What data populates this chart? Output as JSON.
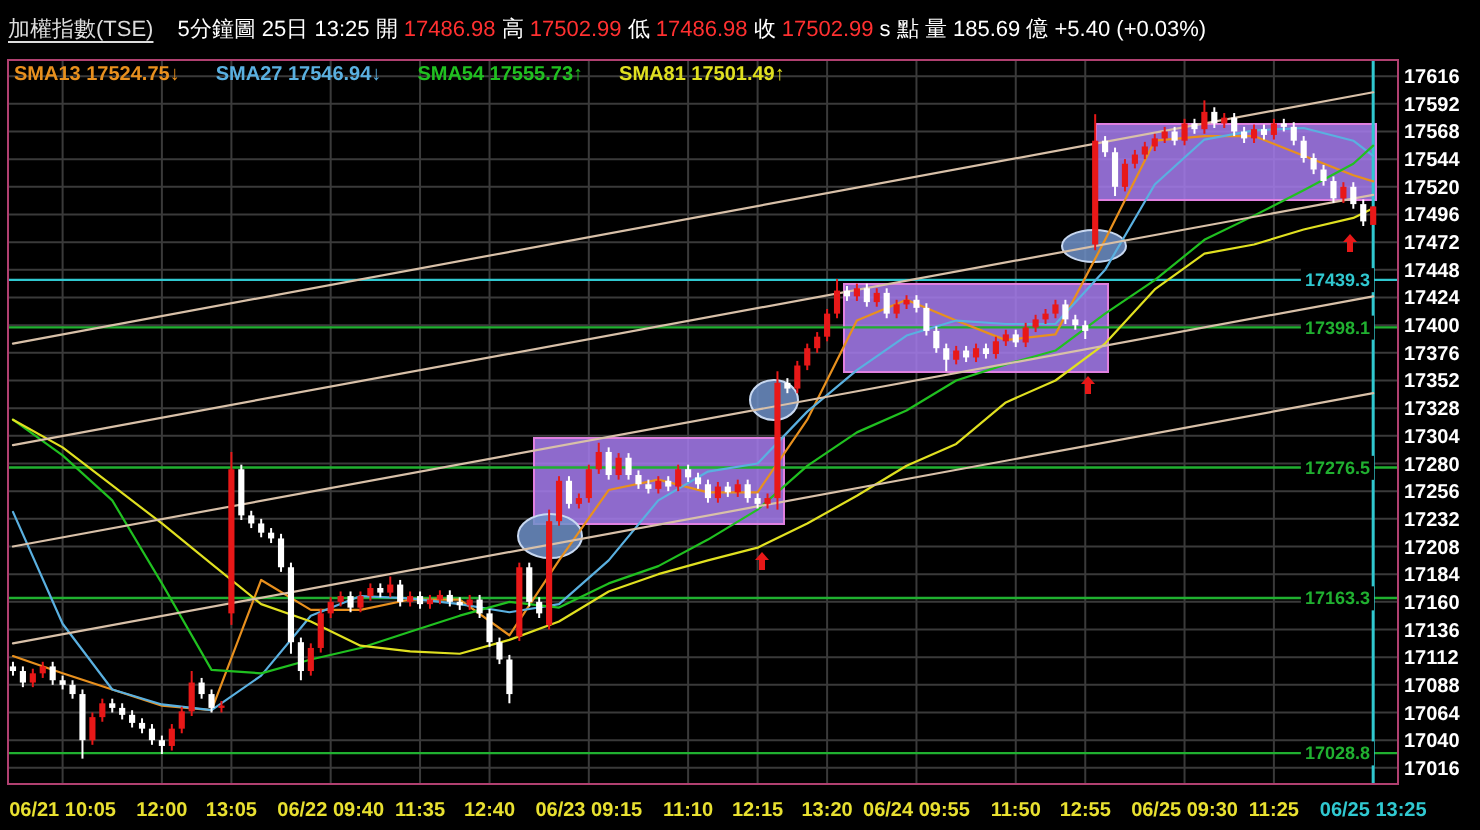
{
  "chart_data": {
    "type": "candlestick",
    "title": "加權指數(TSE)",
    "subtitle": "5分鐘圖 25日 13:25 開 17486.98 高 17502.99 低 17486.98 收 17502.99 s 點 量 185.69 億 +5.40 (+0.03%)",
    "categories": [
      null,
      null,
      null,
      null,
      null,
      "06/21 10:05",
      null,
      null,
      null,
      null,
      null,
      null,
      null,
      null,
      null,
      "12:00",
      null,
      null,
      null,
      null,
      null,
      null,
      "13:05",
      null,
      null,
      null,
      null,
      null,
      null,
      null,
      null,
      null,
      "06/22 09:40",
      null,
      null,
      null,
      null,
      null,
      null,
      null,
      null,
      "11:35",
      null,
      null,
      null,
      null,
      null,
      null,
      "12:40",
      null,
      null,
      null,
      null,
      null,
      null,
      null,
      null,
      null,
      "06/23 09:15",
      null,
      null,
      null,
      null,
      null,
      null,
      null,
      null,
      null,
      "11:10",
      null,
      null,
      null,
      null,
      null,
      null,
      "12:15",
      null,
      null,
      null,
      null,
      null,
      null,
      "13:20",
      null,
      null,
      null,
      null,
      null,
      null,
      null,
      null,
      "06/24 09:55",
      null,
      null,
      null,
      null,
      null,
      null,
      null,
      null,
      null,
      "11:50",
      null,
      null,
      null,
      null,
      null,
      null,
      "12:55",
      null,
      null,
      null,
      null,
      null,
      null,
      null,
      null,
      null,
      "06/25 09:30",
      null,
      null,
      null,
      null,
      null,
      null,
      null,
      null,
      "11:25",
      null,
      null,
      null,
      null,
      null,
      null,
      null,
      null,
      null,
      "06/25 13:25",
      null,
      null
    ],
    "ylim": [
      17002,
      17630
    ],
    "yticks": [
      17016,
      17040,
      17064,
      17088,
      17112,
      17136,
      17160,
      17184,
      17208,
      17232,
      17256,
      17280,
      17304,
      17328,
      17352,
      17376,
      17400,
      17424,
      17448,
      17472,
      17496,
      17520,
      17544,
      17568,
      17592,
      17616
    ],
    "grid": true,
    "legend": "top left",
    "colors": [
      "#ffffff",
      "#ffffff",
      "#e81818",
      "#e81818",
      "#ffffff",
      "#ffffff",
      "#ffffff",
      "#ffffff",
      "#e81818",
      "#e81818",
      "#ffffff",
      "#ffffff",
      "#ffffff",
      "#ffffff",
      "#ffffff",
      "#ffffff",
      "#e81818",
      "#e81818",
      "#e81818",
      "#ffffff",
      "#ffffff",
      "#e81818",
      "#e81818",
      "#ffffff",
      "#ffffff",
      "#ffffff",
      "#ffffff",
      "#ffffff",
      "#ffffff",
      "#ffffff",
      "#e81818",
      "#e81818",
      "#e81818",
      "#e81818",
      "#ffffff",
      "#e81818",
      "#e81818",
      "#ffffff",
      "#e81818",
      "#ffffff",
      "#e81818",
      "#ffffff",
      "#e81818",
      "#e81818",
      "#ffffff",
      "#ffffff",
      "#e81818",
      "#ffffff",
      "#ffffff",
      "#ffffff",
      "#ffffff",
      "#e81818",
      "#ffffff",
      "#ffffff",
      "#e81818",
      "#e81818",
      "#ffffff",
      "#e81818",
      "#e81818",
      "#e81818",
      "#ffffff",
      "#e81818",
      "#ffffff",
      "#ffffff",
      "#ffffff",
      "#e81818",
      "#ffffff",
      "#e81818",
      "#ffffff",
      "#ffffff",
      "#ffffff",
      "#e81818",
      "#ffffff",
      "#e81818",
      "#ffffff",
      "#ffffff",
      "#e81818",
      "#e81818",
      "#ffffff",
      "#e81818",
      "#e81818",
      "#e81818",
      "#e81818",
      "#e81818",
      "#ffffff",
      "#e81818",
      "#ffffff",
      "#e81818",
      "#ffffff",
      "#e81818",
      "#e81818",
      "#ffffff",
      "#ffffff",
      "#ffffff",
      "#ffffff",
      "#e81818",
      "#ffffff",
      "#e81818",
      "#ffffff",
      "#e81818",
      "#e81818",
      "#ffffff",
      "#e81818",
      "#e81818",
      "#e81818",
      "#e81818",
      "#ffffff",
      "#ffffff",
      "#ffffff",
      "#e81818",
      "#ffffff",
      "#ffffff",
      "#e81818",
      "#e81818",
      "#e81818",
      "#e81818",
      "#e81818",
      "#ffffff",
      "#e81818",
      "#ffffff",
      "#e81818",
      "#ffffff",
      "#e81818",
      "#ffffff",
      "#ffffff",
      "#e81818",
      "#ffffff",
      "#e81818",
      "#ffffff",
      "#ffffff",
      "#ffffff",
      "#ffffff",
      "#ffffff",
      "#ffffff",
      "#e81818",
      "#ffffff",
      "#ffffff",
      "#e81818",
      null,
      null
    ],
    "ref_lines": [
      {
        "axis": "y",
        "value": 17439.3,
        "label": "17439.3",
        "color": "#30c8d0"
      },
      {
        "axis": "y",
        "value": 17398.1,
        "label": "17398.1",
        "color": "#20b030"
      },
      {
        "axis": "y",
        "value": 17276.5,
        "label": "17276.5",
        "color": "#20b030"
      },
      {
        "axis": "y",
        "value": 17163.3,
        "label": "17163.3",
        "color": "#20b030"
      },
      {
        "axis": "y",
        "value": 17028.8,
        "label": "17028.8",
        "color": "#20b030"
      },
      {
        "axis": "x",
        "value": "06/25 13:25",
        "color": "#30c8d0"
      }
    ],
    "ohlc": [
      [
        17104,
        17108,
        17096,
        17100
      ],
      [
        17100,
        17104,
        17086,
        17090
      ],
      [
        17090,
        17102,
        17086,
        17098
      ],
      [
        17098,
        17108,
        17094,
        17104
      ],
      [
        17104,
        17108,
        17088,
        17092
      ],
      [
        17092,
        17096,
        17084,
        17088
      ],
      [
        17088,
        17092,
        17076,
        17080
      ],
      [
        17080,
        17084,
        17024,
        17040
      ],
      [
        17040,
        17064,
        17036,
        17060
      ],
      [
        17060,
        17076,
        17056,
        17072
      ],
      [
        17072,
        17076,
        17064,
        17068
      ],
      [
        17068,
        17072,
        17058,
        17062
      ],
      [
        17062,
        17066,
        17051,
        17055
      ],
      [
        17055,
        17059,
        17046,
        17050
      ],
      [
        17050,
        17054,
        17036,
        17040
      ],
      [
        17040,
        17044,
        17028,
        17035
      ],
      [
        17035,
        17054,
        17031,
        17050
      ],
      [
        17050,
        17069,
        17046,
        17065
      ],
      [
        17065,
        17100,
        17061,
        17090
      ],
      [
        17090,
        17094,
        17076,
        17080
      ],
      [
        17080,
        17084,
        17064,
        17068
      ],
      [
        17068,
        17074,
        17064,
        17070
      ],
      [
        17150,
        17290,
        17140,
        17275
      ],
      [
        17275,
        17279,
        17231,
        17235
      ],
      [
        17235,
        17239,
        17224,
        17228
      ],
      [
        17228,
        17232,
        17216,
        17220
      ],
      [
        17220,
        17224,
        17211,
        17215
      ],
      [
        17215,
        17219,
        17186,
        17190
      ],
      [
        17190,
        17194,
        17115,
        17125
      ],
      [
        17125,
        17129,
        17092,
        17100
      ],
      [
        17100,
        17124,
        17096,
        17120
      ],
      [
        17120,
        17154,
        17116,
        17150
      ],
      [
        17150,
        17164,
        17146,
        17160
      ],
      [
        17160,
        17169,
        17156,
        17165
      ],
      [
        17165,
        17169,
        17151,
        17155
      ],
      [
        17155,
        17169,
        17151,
        17165
      ],
      [
        17165,
        17176,
        17161,
        17172
      ],
      [
        17172,
        17176,
        17164,
        17168
      ],
      [
        17168,
        17182,
        17164,
        17175
      ],
      [
        17175,
        17179,
        17156,
        17160
      ],
      [
        17160,
        17169,
        17156,
        17165
      ],
      [
        17165,
        17169,
        17154,
        17158
      ],
      [
        17158,
        17166,
        17154,
        17162
      ],
      [
        17162,
        17170,
        17158,
        17166
      ],
      [
        17166,
        17170,
        17156,
        17160
      ],
      [
        17160,
        17164,
        17153,
        17157
      ],
      [
        17157,
        17166,
        17153,
        17162
      ],
      [
        17162,
        17166,
        17146,
        17150
      ],
      [
        17150,
        17154,
        17121,
        17125
      ],
      [
        17125,
        17129,
        17106,
        17110
      ],
      [
        17110,
        17114,
        17072,
        17080
      ],
      [
        17130,
        17194,
        17126,
        17190
      ],
      [
        17190,
        17194,
        17156,
        17160
      ],
      [
        17160,
        17164,
        17146,
        17150
      ],
      [
        17140,
        17240,
        17136,
        17230
      ],
      [
        17230,
        17269,
        17226,
        17265
      ],
      [
        17265,
        17269,
        17241,
        17245
      ],
      [
        17245,
        17254,
        17241,
        17250
      ],
      [
        17250,
        17279,
        17246,
        17275
      ],
      [
        17275,
        17298,
        17271,
        17290
      ],
      [
        17290,
        17294,
        17266,
        17270
      ],
      [
        17270,
        17289,
        17266,
        17285
      ],
      [
        17285,
        17289,
        17266,
        17270
      ],
      [
        17270,
        17274,
        17258,
        17262
      ],
      [
        17262,
        17266,
        17254,
        17258
      ],
      [
        17258,
        17269,
        17254,
        17265
      ],
      [
        17265,
        17269,
        17256,
        17260
      ],
      [
        17260,
        17279,
        17256,
        17275
      ],
      [
        17275,
        17279,
        17264,
        17268
      ],
      [
        17268,
        17272,
        17258,
        17262
      ],
      [
        17262,
        17266,
        17246,
        17250
      ],
      [
        17250,
        17264,
        17246,
        17260
      ],
      [
        17260,
        17264,
        17251,
        17255
      ],
      [
        17255,
        17266,
        17251,
        17262
      ],
      [
        17262,
        17266,
        17246,
        17250
      ],
      [
        17250,
        17254,
        17241,
        17245
      ],
      [
        17245,
        17254,
        17241,
        17250
      ],
      [
        17250,
        17360,
        17240,
        17350
      ],
      [
        17350,
        17354,
        17341,
        17345
      ],
      [
        17345,
        17369,
        17341,
        17365
      ],
      [
        17365,
        17384,
        17361,
        17380
      ],
      [
        17380,
        17394,
        17376,
        17390
      ],
      [
        17390,
        17414,
        17386,
        17410
      ],
      [
        17410,
        17440,
        17406,
        17430
      ],
      [
        17430,
        17434,
        17421,
        17425
      ],
      [
        17425,
        17436,
        17421,
        17432
      ],
      [
        17432,
        17436,
        17416,
        17420
      ],
      [
        17420,
        17432,
        17416,
        17428
      ],
      [
        17428,
        17432,
        17406,
        17410
      ],
      [
        17410,
        17422,
        17406,
        17418
      ],
      [
        17418,
        17426,
        17414,
        17422
      ],
      [
        17422,
        17426,
        17411,
        17415
      ],
      [
        17415,
        17419,
        17391,
        17395
      ],
      [
        17395,
        17399,
        17376,
        17380
      ],
      [
        17380,
        17384,
        17360,
        17370
      ],
      [
        17370,
        17382,
        17366,
        17378
      ],
      [
        17378,
        17382,
        17368,
        17372
      ],
      [
        17372,
        17384,
        17368,
        17380
      ],
      [
        17380,
        17384,
        17371,
        17375
      ],
      [
        17375,
        17390,
        17371,
        17386
      ],
      [
        17386,
        17396,
        17382,
        17392
      ],
      [
        17392,
        17396,
        17381,
        17385
      ],
      [
        17385,
        17402,
        17381,
        17398
      ],
      [
        17398,
        17409,
        17394,
        17405
      ],
      [
        17405,
        17414,
        17401,
        17410
      ],
      [
        17410,
        17422,
        17406,
        17418
      ],
      [
        17418,
        17422,
        17401,
        17405
      ],
      [
        17405,
        17409,
        17396,
        17400
      ],
      [
        17400,
        17404,
        17388,
        17395
      ],
      [
        17470,
        17583,
        17465,
        17560
      ],
      [
        17560,
        17564,
        17546,
        17550
      ],
      [
        17550,
        17554,
        17512,
        17520
      ],
      [
        17520,
        17544,
        17516,
        17540
      ],
      [
        17540,
        17552,
        17536,
        17548
      ],
      [
        17548,
        17559,
        17544,
        17555
      ],
      [
        17555,
        17566,
        17551,
        17562
      ],
      [
        17562,
        17572,
        17558,
        17568
      ],
      [
        17568,
        17572,
        17556,
        17560
      ],
      [
        17560,
        17579,
        17556,
        17575
      ],
      [
        17575,
        17579,
        17566,
        17570
      ],
      [
        17570,
        17595,
        17566,
        17585
      ],
      [
        17585,
        17589,
        17571,
        17575
      ],
      [
        17575,
        17584,
        17571,
        17580
      ],
      [
        17580,
        17584,
        17564,
        17568
      ],
      [
        17568,
        17572,
        17558,
        17562
      ],
      [
        17562,
        17574,
        17558,
        17570
      ],
      [
        17570,
        17574,
        17561,
        17565
      ],
      [
        17565,
        17579,
        17561,
        17575
      ],
      [
        17575,
        17579,
        17568,
        17572
      ],
      [
        17572,
        17576,
        17556,
        17560
      ],
      [
        17560,
        17564,
        17541,
        17545
      ],
      [
        17545,
        17549,
        17531,
        17535
      ],
      [
        17535,
        17539,
        17521,
        17525
      ],
      [
        17525,
        17529,
        17506,
        17510
      ],
      [
        17510,
        17524,
        17506,
        17520
      ],
      [
        17520,
        17524,
        17501,
        17505
      ],
      [
        17505,
        17509,
        17486,
        17490
      ],
      [
        17486.98,
        17502.99,
        17486.98,
        17502.99
      ],
      null,
      null
    ],
    "series": [
      {
        "type": "line",
        "name": "SMA13 17524.75↓",
        "color": "#e8901e",
        "values": [
          17113,
          null,
          null,
          null,
          null,
          17098,
          null,
          null,
          null,
          null,
          17084,
          null,
          null,
          null,
          null,
          17070,
          null,
          null,
          null,
          null,
          17066,
          null,
          null,
          null,
          null,
          17179,
          null,
          null,
          null,
          null,
          17153,
          null,
          null,
          null,
          null,
          17153,
          null,
          null,
          null,
          null,
          17162,
          null,
          null,
          null,
          null,
          17162,
          null,
          null,
          null,
          null,
          17131,
          null,
          null,
          null,
          null,
          17196,
          null,
          null,
          null,
          null,
          17257,
          null,
          null,
          null,
          null,
          17266,
          null,
          null,
          null,
          null,
          17255,
          null,
          null,
          null,
          null,
          17255,
          null,
          null,
          null,
          null,
          17318,
          null,
          null,
          null,
          null,
          17404,
          null,
          null,
          null,
          null,
          17422,
          null,
          null,
          null,
          null,
          17404,
          null,
          null,
          null,
          null,
          17387,
          null,
          null,
          null,
          null,
          17392,
          null,
          null,
          null,
          null,
          17474,
          null,
          null,
          null,
          null,
          17560,
          null,
          null,
          null,
          null,
          17564,
          null,
          null,
          null,
          null,
          17564,
          null,
          null,
          null,
          null,
          17547,
          null,
          null,
          null,
          null,
          17530,
          null,
          17524.75,
          null,
          null
        ]
      },
      {
        "type": "line",
        "name": "SMA27 17546.94↓",
        "color": "#5ab0e0",
        "values": [
          17238,
          null,
          null,
          null,
          null,
          17141,
          null,
          null,
          null,
          null,
          17084,
          null,
          null,
          null,
          null,
          17071,
          null,
          null,
          null,
          null,
          17066,
          null,
          null,
          null,
          null,
          17096,
          null,
          null,
          null,
          null,
          17148,
          null,
          null,
          null,
          null,
          17165,
          null,
          null,
          null,
          null,
          17163,
          null,
          null,
          null,
          null,
          17158,
          null,
          null,
          null,
          null,
          17151,
          null,
          null,
          null,
          null,
          17158,
          null,
          null,
          null,
          null,
          17196,
          null,
          null,
          null,
          null,
          17248,
          null,
          null,
          null,
          null,
          17273,
          null,
          null,
          null,
          null,
          17280,
          null,
          null,
          null,
          null,
          17325,
          null,
          null,
          null,
          null,
          17361,
          null,
          null,
          null,
          null,
          17391,
          null,
          null,
          null,
          null,
          17404,
          null,
          null,
          null,
          null,
          17401,
          null,
          null,
          null,
          null,
          17401,
          null,
          null,
          null,
          null,
          17448,
          null,
          null,
          null,
          null,
          17522,
          null,
          null,
          null,
          null,
          17561,
          null,
          null,
          null,
          null,
          17569,
          null,
          null,
          null,
          null,
          17571,
          null,
          null,
          null,
          null,
          17560,
          null,
          17546.94,
          null,
          null
        ]
      },
      {
        "type": "line",
        "name": "SMA54 17555.73↑",
        "color": "#20c020",
        "values": [
          17318,
          null,
          null,
          null,
          null,
          17287,
          null,
          null,
          null,
          null,
          17248,
          null,
          null,
          null,
          null,
          17176,
          null,
          null,
          null,
          null,
          17101,
          null,
          null,
          null,
          null,
          17098,
          null,
          null,
          null,
          null,
          17110,
          null,
          null,
          null,
          null,
          17120,
          null,
          null,
          null,
          null,
          17134,
          null,
          null,
          null,
          null,
          17148,
          null,
          null,
          null,
          null,
          17160,
          null,
          null,
          null,
          null,
          17155,
          null,
          null,
          null,
          null,
          17176,
          null,
          null,
          null,
          null,
          17191,
          null,
          null,
          null,
          null,
          17214,
          null,
          null,
          null,
          null,
          17240,
          null,
          null,
          null,
          null,
          17278,
          null,
          null,
          null,
          null,
          17307,
          null,
          null,
          null,
          null,
          17326,
          null,
          null,
          null,
          null,
          17352,
          null,
          null,
          null,
          null,
          17366,
          null,
          null,
          null,
          null,
          17378,
          null,
          null,
          null,
          null,
          17410,
          null,
          null,
          null,
          null,
          17439,
          null,
          null,
          null,
          null,
          17474,
          null,
          null,
          null,
          null,
          17495,
          null,
          null,
          null,
          null,
          17517,
          null,
          null,
          null,
          null,
          17540,
          null,
          17555.73,
          null,
          null
        ]
      },
      {
        "type": "line",
        "name": "SMA81 17501.49↑",
        "color": "#e0e020",
        "values": [
          17318,
          null,
          null,
          null,
          null,
          17294,
          null,
          null,
          null,
          null,
          17261,
          null,
          null,
          null,
          null,
          17228,
          null,
          null,
          null,
          null,
          17193,
          null,
          null,
          null,
          null,
          17158,
          null,
          null,
          null,
          null,
          17143,
          null,
          null,
          null,
          null,
          17122,
          null,
          null,
          null,
          null,
          17117,
          null,
          null,
          null,
          null,
          17115,
          null,
          null,
          null,
          null,
          17127,
          null,
          null,
          null,
          null,
          17143,
          null,
          null,
          null,
          null,
          17169,
          null,
          null,
          null,
          null,
          17184,
          null,
          null,
          null,
          null,
          17196,
          null,
          null,
          null,
          null,
          17207,
          null,
          null,
          null,
          null,
          17228,
          null,
          null,
          null,
          null,
          17252,
          null,
          null,
          null,
          null,
          17278,
          null,
          null,
          null,
          null,
          17297,
          null,
          null,
          null,
          null,
          17333,
          null,
          null,
          null,
          null,
          17352,
          null,
          null,
          null,
          null,
          17384,
          null,
          null,
          null,
          null,
          17431,
          null,
          null,
          null,
          null,
          17462,
          null,
          null,
          null,
          null,
          17470,
          null,
          null,
          null,
          null,
          17483,
          null,
          null,
          null,
          null,
          17493,
          null,
          17501.49,
          null,
          null
        ]
      },
      {
        "type": "line",
        "color": "#d8c0a8",
        "values": [
          17384,
          null,
          null,
          null,
          null,
          null,
          null,
          null,
          null,
          null,
          null,
          null,
          null,
          null,
          null,
          null,
          null,
          null,
          null,
          null,
          null,
          null,
          null,
          null,
          null,
          null,
          null,
          null,
          null,
          null,
          null,
          null,
          null,
          null,
          null,
          null,
          null,
          null,
          null,
          null,
          null,
          null,
          null,
          null,
          null,
          null,
          null,
          null,
          null,
          null,
          null,
          null,
          null,
          null,
          null,
          null,
          null,
          null,
          null,
          null,
          null,
          null,
          null,
          null,
          null,
          null,
          null,
          null,
          null,
          null,
          null,
          null,
          null,
          null,
          null,
          null,
          null,
          null,
          null,
          null,
          null,
          null,
          null,
          null,
          null,
          null,
          null,
          null,
          null,
          null,
          null,
          null,
          null,
          null,
          null,
          null,
          null,
          null,
          null,
          null,
          null,
          null,
          null,
          null,
          null,
          null,
          null,
          null,
          null,
          null,
          null,
          null,
          null,
          null,
          null,
          null,
          null,
          null,
          null,
          null,
          null,
          null,
          null,
          null,
          null,
          null,
          null,
          null,
          null,
          null,
          null,
          null,
          null,
          null,
          null,
          null,
          null,
          17602,
          null,
          null
        ]
      },
      {
        "type": "line",
        "color": "#d8c0a8",
        "values": [
          17296,
          null,
          null,
          null,
          null,
          null,
          null,
          null,
          null,
          null,
          null,
          null,
          null,
          null,
          null,
          null,
          null,
          null,
          null,
          null,
          null,
          null,
          null,
          null,
          null,
          null,
          null,
          null,
          null,
          null,
          null,
          null,
          null,
          null,
          null,
          null,
          null,
          null,
          null,
          null,
          null,
          null,
          null,
          null,
          null,
          null,
          null,
          null,
          null,
          null,
          null,
          null,
          null,
          null,
          null,
          null,
          null,
          null,
          null,
          null,
          null,
          null,
          null,
          null,
          null,
          null,
          null,
          null,
          null,
          null,
          null,
          null,
          null,
          null,
          null,
          null,
          null,
          null,
          null,
          null,
          null,
          null,
          null,
          null,
          null,
          null,
          null,
          null,
          null,
          null,
          null,
          null,
          null,
          null,
          null,
          null,
          null,
          null,
          null,
          null,
          null,
          null,
          null,
          null,
          null,
          null,
          null,
          null,
          null,
          null,
          null,
          null,
          null,
          null,
          null,
          null,
          null,
          null,
          null,
          null,
          null,
          null,
          null,
          null,
          null,
          null,
          null,
          null,
          null,
          null,
          null,
          null,
          null,
          null,
          null,
          null,
          null,
          17513,
          null,
          null
        ]
      },
      {
        "type": "line",
        "color": "#d8c0a8",
        "values": [
          17208,
          null,
          null,
          null,
          null,
          null,
          null,
          null,
          null,
          null,
          null,
          null,
          null,
          null,
          null,
          null,
          null,
          null,
          null,
          null,
          null,
          null,
          null,
          null,
          null,
          null,
          null,
          null,
          null,
          null,
          null,
          null,
          null,
          null,
          null,
          null,
          null,
          null,
          null,
          null,
          null,
          null,
          null,
          null,
          null,
          null,
          null,
          null,
          null,
          null,
          null,
          null,
          null,
          null,
          null,
          null,
          null,
          null,
          null,
          null,
          null,
          null,
          null,
          null,
          null,
          null,
          null,
          null,
          null,
          null,
          null,
          null,
          null,
          null,
          null,
          null,
          null,
          null,
          null,
          null,
          null,
          null,
          null,
          null,
          null,
          null,
          null,
          null,
          null,
          null,
          null,
          null,
          null,
          null,
          null,
          null,
          null,
          null,
          null,
          null,
          null,
          null,
          null,
          null,
          null,
          null,
          null,
          null,
          null,
          null,
          null,
          null,
          null,
          null,
          null,
          null,
          null,
          null,
          null,
          null,
          null,
          null,
          null,
          null,
          null,
          null,
          null,
          null,
          null,
          null,
          null,
          null,
          null,
          null,
          null,
          null,
          null,
          17425,
          null,
          null
        ]
      },
      {
        "type": "line",
        "color": "#d8c0a8",
        "values": [
          17124,
          null,
          null,
          null,
          null,
          null,
          null,
          null,
          null,
          null,
          null,
          null,
          null,
          null,
          null,
          null,
          null,
          null,
          null,
          null,
          null,
          null,
          null,
          null,
          null,
          null,
          null,
          null,
          null,
          null,
          null,
          null,
          null,
          null,
          null,
          null,
          null,
          null,
          null,
          null,
          null,
          null,
          null,
          null,
          null,
          null,
          null,
          null,
          null,
          null,
          null,
          null,
          null,
          null,
          null,
          null,
          null,
          null,
          null,
          null,
          null,
          null,
          null,
          null,
          null,
          null,
          null,
          null,
          null,
          null,
          null,
          null,
          null,
          null,
          null,
          null,
          null,
          null,
          null,
          null,
          null,
          null,
          null,
          null,
          null,
          null,
          null,
          null,
          null,
          null,
          null,
          null,
          null,
          null,
          null,
          null,
          null,
          null,
          null,
          null,
          null,
          null,
          null,
          null,
          null,
          null,
          null,
          null,
          null,
          null,
          null,
          null,
          null,
          null,
          null,
          null,
          null,
          null,
          null,
          null,
          null,
          null,
          null,
          null,
          null,
          null,
          null,
          null,
          null,
          null,
          null,
          null,
          null,
          null,
          null,
          null,
          null,
          17341,
          null,
          null
        ]
      }
    ]
  }
}
